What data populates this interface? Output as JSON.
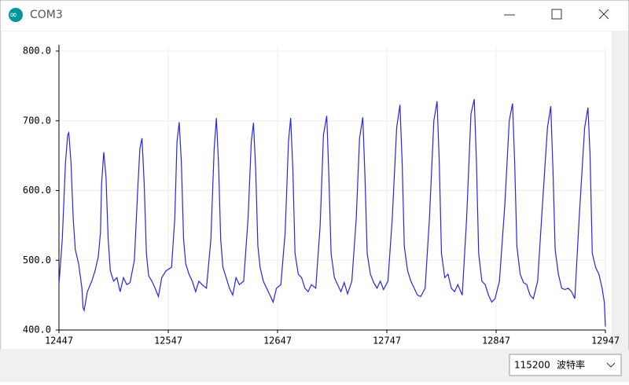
{
  "window": {
    "title": "COM3",
    "baud": "115200",
    "baud_label": "波特率"
  },
  "chart_data": {
    "type": "line",
    "color": "#2626e6",
    "grid": true,
    "xlim": [
      12447,
      12947
    ],
    "xticks": [
      12447,
      12547,
      12647,
      12747,
      12847,
      12947
    ],
    "ylim": [
      400,
      800
    ],
    "yticks": [
      {
        "value": 400,
        "label": "400.0"
      },
      {
        "value": 500,
        "label": "500.0"
      },
      {
        "value": 600,
        "label": "600.0"
      },
      {
        "value": 700,
        "label": "700.0"
      },
      {
        "value": 800,
        "label": "800.0"
      }
    ],
    "x": [
      12447,
      12450,
      12453,
      12455,
      12456,
      12458,
      12460,
      12462,
      12465,
      12468,
      12469,
      12470,
      12473,
      12477,
      12480,
      12483,
      12485,
      12486,
      12488,
      12490,
      12492,
      12494,
      12497,
      12500,
      12503,
      12506,
      12509,
      12512,
      12516,
      12519,
      12521,
      12523,
      12525,
      12527,
      12529,
      12532,
      12535,
      12538,
      12541,
      12545,
      12550,
      12553,
      12555,
      12557,
      12559,
      12561,
      12563,
      12566,
      12569,
      12572,
      12575,
      12578,
      12582,
      12586,
      12589,
      12591,
      12593,
      12595,
      12597,
      12600,
      12603,
      12606,
      12609,
      12612,
      12616,
      12620,
      12623,
      12625,
      12627,
      12629,
      12631,
      12634,
      12637,
      12640,
      12643,
      12646,
      12650,
      12654,
      12657,
      12659,
      12661,
      12663,
      12666,
      12669,
      12672,
      12675,
      12678,
      12682,
      12686,
      12689,
      12692,
      12694,
      12696,
      12699,
      12702,
      12705,
      12708,
      12711,
      12715,
      12719,
      12722,
      12725,
      12727,
      12729,
      12732,
      12735,
      12738,
      12741,
      12744,
      12748,
      12752,
      12756,
      12759,
      12761,
      12763,
      12766,
      12769,
      12772,
      12775,
      12778,
      12782,
      12786,
      12790,
      12793,
      12795,
      12797,
      12800,
      12803,
      12806,
      12809,
      12812,
      12816,
      12820,
      12824,
      12827,
      12829,
      12831,
      12834,
      12837,
      12840,
      12843,
      12846,
      12850,
      12855,
      12859,
      12862,
      12864,
      12866,
      12869,
      12872,
      12875,
      12878,
      12881,
      12885,
      12889,
      12894,
      12897,
      12899,
      12901,
      12904,
      12907,
      12910,
      12913,
      12916,
      12919,
      12923,
      12928,
      12931,
      12933,
      12935,
      12938,
      12941,
      12944,
      12946,
      12947
    ],
    "values": [
      465,
      530,
      640,
      680,
      683,
      640,
      560,
      515,
      495,
      460,
      432,
      428,
      455,
      470,
      485,
      505,
      540,
      610,
      655,
      620,
      530,
      485,
      470,
      475,
      455,
      475,
      465,
      468,
      500,
      600,
      660,
      675,
      610,
      510,
      478,
      470,
      460,
      448,
      475,
      485,
      490,
      560,
      670,
      698,
      640,
      530,
      495,
      480,
      470,
      455,
      470,
      465,
      460,
      530,
      660,
      704,
      640,
      530,
      490,
      475,
      460,
      450,
      475,
      465,
      470,
      560,
      670,
      697,
      630,
      520,
      490,
      470,
      460,
      450,
      440,
      460,
      465,
      540,
      670,
      704,
      630,
      510,
      480,
      475,
      460,
      455,
      465,
      460,
      550,
      680,
      707,
      620,
      510,
      475,
      465,
      455,
      468,
      452,
      470,
      560,
      675,
      705,
      620,
      510,
      480,
      468,
      460,
      470,
      458,
      470,
      560,
      690,
      723,
      640,
      520,
      485,
      470,
      460,
      450,
      448,
      460,
      560,
      700,
      728,
      640,
      510,
      475,
      480,
      460,
      455,
      465,
      450,
      560,
      710,
      731,
      640,
      510,
      470,
      465,
      450,
      440,
      445,
      470,
      580,
      700,
      725,
      640,
      520,
      480,
      468,
      465,
      450,
      445,
      470,
      570,
      690,
      721,
      630,
      515,
      480,
      460,
      458,
      460,
      455,
      445,
      560,
      690,
      719,
      650,
      510,
      490,
      480,
      460,
      440,
      405
    ]
  }
}
